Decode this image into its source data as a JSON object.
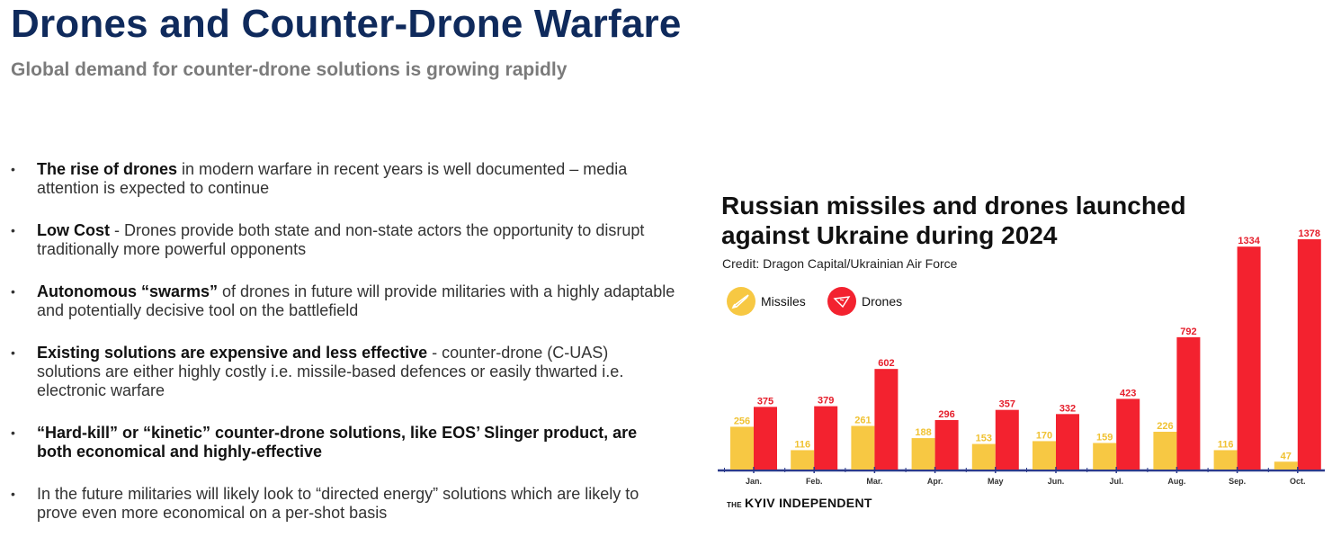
{
  "header": {
    "title": "Drones and Counter-Drone Warfare",
    "subtitle": "Global demand for counter-drone solutions is growing rapidly"
  },
  "bullets": [
    {
      "bold": "The rise of drones",
      "text": " in modern warfare in recent years is well documented – media attention is expected to continue"
    },
    {
      "bold": "Low Cost",
      "text": " - Drones provide both state and non-state actors the opportunity to disrupt traditionally more powerful opponents"
    },
    {
      "bold": "Autonomous “swarms”",
      "text": " of drones in future will provide militaries with a highly adaptable and potentially decisive tool on the battlefield"
    },
    {
      "bold": "Existing  solutions are expensive and less effective",
      "text": " - counter-drone (C-UAS) solutions are either highly costly i.e. missile-based defences or easily thwarted i.e. electronic warfare"
    },
    {
      "bold": "“Hard-kill” or “kinetic” counter-drone solutions, like EOS’ Slinger product, are both economical and highly-effective",
      "text": ""
    },
    {
      "bold": "",
      "text": "In the future militaries will likely look to “directed energy” solutions which are likely to prove even more economical on a per-shot basis"
    }
  ],
  "brand": {
    "the": "THE",
    "name": "KYIV INDEPENDENT"
  },
  "chart_data": {
    "type": "bar",
    "title": "Russian missiles and drones launched against Ukraine during 2024",
    "credit": "Credit: Dragon Capital/Ukrainian Air Force",
    "categories": [
      "Jan.",
      "Feb.",
      "Mar.",
      "Apr.",
      "May",
      "Jun.",
      "Jul.",
      "Aug.",
      "Sep.",
      "Oct."
    ],
    "series": [
      {
        "name": "Missiles",
        "color": "#f7c843",
        "label_color": "#f0c233",
        "values": [
          256,
          116,
          261,
          188,
          153,
          170,
          159,
          226,
          116,
          47
        ]
      },
      {
        "name": "Drones",
        "color": "#f3222f",
        "label_color": "#e51e2b",
        "values": [
          375,
          379,
          602,
          296,
          357,
          332,
          423,
          792,
          1334,
          1378
        ]
      }
    ],
    "ylim": [
      0,
      1378
    ],
    "xlabel": "",
    "ylabel": "",
    "axis_color": "#2b3a8c",
    "legend_position": "top-left"
  },
  "legend_icons": {
    "missiles": "missile-icon",
    "drones": "drone-icon"
  }
}
